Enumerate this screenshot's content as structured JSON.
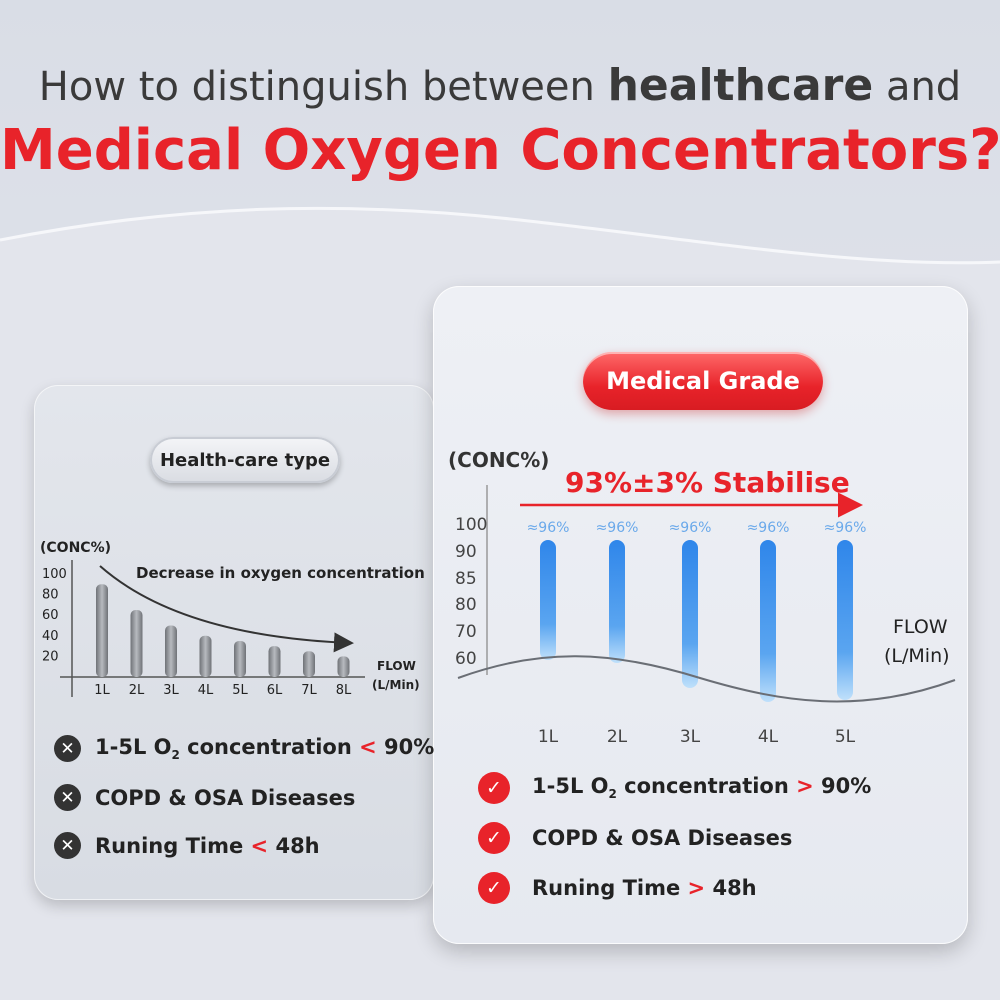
{
  "title": {
    "line1_prefix": "How to distinguish between",
    "line1_bold": "healthcare",
    "line1_suffix": "and",
    "line2": "Medical Oxygen Concentrators?!"
  },
  "left_panel": {
    "badge": "Health-care type",
    "annotation": "Decrease in oxygen concentration",
    "list": [
      {
        "icon": "x-icon",
        "prefix": "1-5L O",
        "subscript": "2",
        "middle": " concentration ",
        "op": "<",
        "value": " 90%"
      },
      {
        "icon": "x-icon",
        "prefix": "COPD & OSA Diseases",
        "subscript": "",
        "middle": "",
        "op": "",
        "value": ""
      },
      {
        "icon": "x-icon",
        "prefix": "Runing Time ",
        "subscript": "",
        "middle": "",
        "op": "<",
        "value": " 48h"
      }
    ]
  },
  "right_panel": {
    "badge": "Medical Grade",
    "annotation": "93%±3% Stabilise",
    "list": [
      {
        "icon": "check-icon",
        "prefix": "1-5L O",
        "subscript": "2",
        "middle": " concentration ",
        "op": ">",
        "value": " 90%"
      },
      {
        "icon": "check-icon",
        "prefix": "COPD & OSA Diseases",
        "subscript": "",
        "middle": "",
        "op": "",
        "value": ""
      },
      {
        "icon": "check-icon",
        "prefix": "Runing Time ",
        "subscript": "",
        "middle": "",
        "op": ">",
        "value": " 48h"
      }
    ]
  },
  "colors": {
    "accent_red": "#e8232a",
    "bar_blue": "#3d8fe8",
    "bar_gray": "#8a8d93",
    "dark_text": "#222222"
  },
  "chart_data": [
    {
      "type": "bar",
      "ylabel": "(CONC%)",
      "xlabel": "FLOW (L/Min)",
      "categories": [
        "1L",
        "2L",
        "3L",
        "4L",
        "5L",
        "6L",
        "7L",
        "8L"
      ],
      "values": [
        90,
        65,
        50,
        40,
        35,
        30,
        25,
        20
      ],
      "yticks": [
        100,
        80,
        60,
        40,
        20
      ],
      "ylim": [
        0,
        100
      ],
      "annotation": "Decrease in oxygen concentration"
    },
    {
      "type": "bar",
      "ylabel": "(CONC%)",
      "xlabel": "FLOW (L/Min)",
      "categories": [
        "1L",
        "2L",
        "3L",
        "4L",
        "5L"
      ],
      "values": [
        96,
        96,
        96,
        96,
        96
      ],
      "data_labels": [
        "≈96%",
        "≈96%",
        "≈96%",
        "≈96%",
        "≈96%"
      ],
      "yticks": [
        100,
        90,
        85,
        80,
        70,
        60
      ],
      "annotation": "93%±3% Stabilise"
    }
  ]
}
